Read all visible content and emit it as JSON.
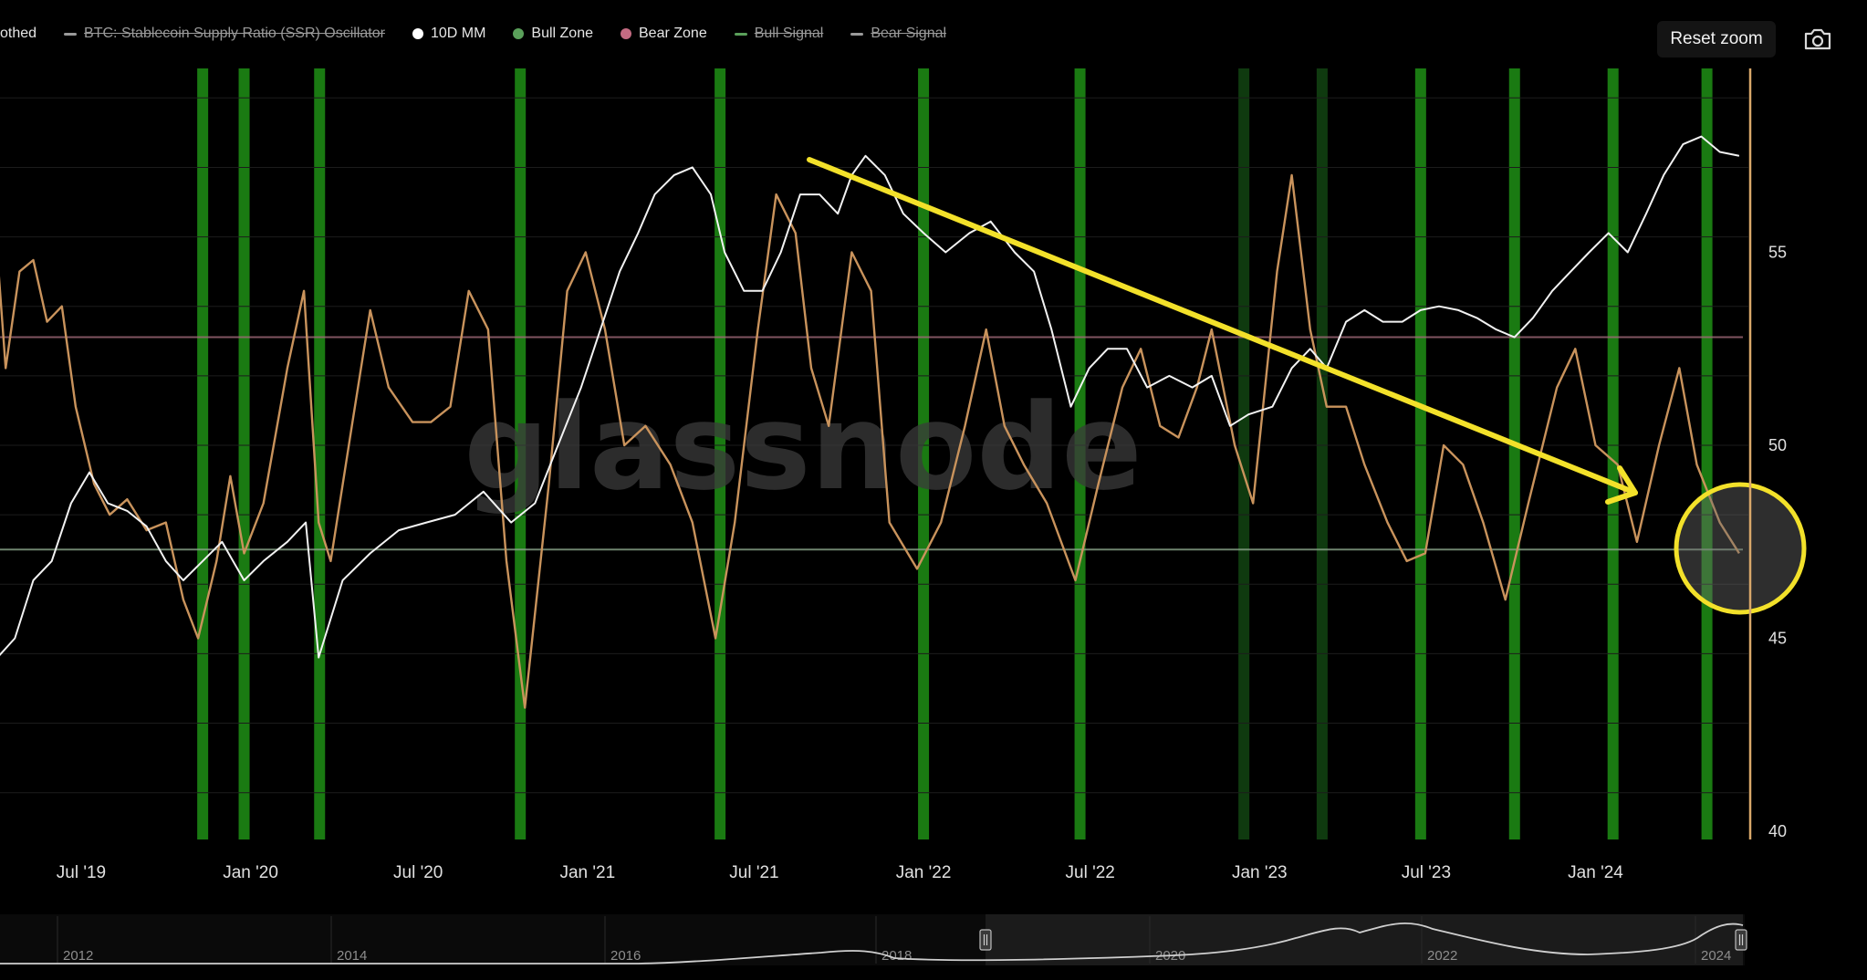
{
  "legend": {
    "items": [
      {
        "label": "othed",
        "color": "#c9935c",
        "active": true,
        "marker": "none"
      },
      {
        "label": "BTC: Stablecoin Supply Ratio (SSR) Oscillator",
        "color": "#9a9a9a",
        "active": false,
        "marker": "line"
      },
      {
        "label": "10D MM",
        "color": "#ffffff",
        "active": true,
        "marker": "dot"
      },
      {
        "label": "Bull Zone",
        "color": "#5aa05a",
        "active": true,
        "marker": "dot"
      },
      {
        "label": "Bear Zone",
        "color": "#c46b82",
        "active": true,
        "marker": "dot"
      },
      {
        "label": "Bull Signal",
        "color": "#5aa05a",
        "active": false,
        "marker": "line"
      },
      {
        "label": "Bear Signal",
        "color": "#9a9a9a",
        "active": false,
        "marker": "line"
      }
    ]
  },
  "toolbar": {
    "reset_zoom_label": "Reset zoom"
  },
  "icons": {
    "camera": "camera-icon"
  },
  "watermark": "glassnode",
  "chart_data": {
    "type": "line",
    "x_range": [
      "2019-03-15",
      "2024-06-15"
    ],
    "x_ticks": [
      {
        "date": "2019-07-01",
        "label": "Jul '19"
      },
      {
        "date": "2020-01-01",
        "label": "Jan '20"
      },
      {
        "date": "2020-07-01",
        "label": "Jul '20"
      },
      {
        "date": "2021-01-01",
        "label": "Jan '21"
      },
      {
        "date": "2021-07-01",
        "label": "Jul '21"
      },
      {
        "date": "2022-01-01",
        "label": "Jan '22"
      },
      {
        "date": "2022-07-01",
        "label": "Jul '22"
      },
      {
        "date": "2023-01-01",
        "label": "Jan '23"
      },
      {
        "date": "2023-07-01",
        "label": "Jul '23"
      },
      {
        "date": "2024-01-01",
        "label": "Jan '24"
      }
    ],
    "y_right": {
      "min": 40,
      "max": 60,
      "ticks": [
        40,
        45,
        50,
        55
      ]
    },
    "bear_zone_level": 52.8,
    "bull_zone_level": 47.3,
    "bull_signal_dates": [
      "2019-11-10",
      "2019-12-25",
      "2020-03-16",
      "2020-10-20",
      "2021-05-25",
      "2022-01-01",
      "2022-06-20",
      "2022-12-15",
      "2023-03-10",
      "2023-06-25",
      "2023-10-05",
      "2024-01-20",
      "2024-05-01"
    ],
    "series": [
      {
        "name": "othed",
        "color": "#c9935c",
        "points": [
          [
            "2019-03-15",
            55.8
          ],
          [
            "2019-03-25",
            57.2
          ],
          [
            "2019-04-10",
            52.0
          ],
          [
            "2019-04-25",
            54.5
          ],
          [
            "2019-05-10",
            54.8
          ],
          [
            "2019-05-25",
            53.2
          ],
          [
            "2019-06-10",
            53.6
          ],
          [
            "2019-06-25",
            51.0
          ],
          [
            "2019-07-15",
            49.0
          ],
          [
            "2019-08-01",
            48.2
          ],
          [
            "2019-08-20",
            48.6
          ],
          [
            "2019-09-10",
            47.8
          ],
          [
            "2019-10-01",
            48.0
          ],
          [
            "2019-10-20",
            46.0
          ],
          [
            "2019-11-05",
            45.0
          ],
          [
            "2019-11-25",
            47.0
          ],
          [
            "2019-12-10",
            49.2
          ],
          [
            "2019-12-25",
            47.2
          ],
          [
            "2020-01-15",
            48.5
          ],
          [
            "2020-02-10",
            52.0
          ],
          [
            "2020-02-28",
            54.0
          ],
          [
            "2020-03-15",
            48.0
          ],
          [
            "2020-03-28",
            47.0
          ],
          [
            "2020-04-20",
            50.5
          ],
          [
            "2020-05-10",
            53.5
          ],
          [
            "2020-05-30",
            51.5
          ],
          [
            "2020-06-25",
            50.6
          ],
          [
            "2020-07-15",
            50.6
          ],
          [
            "2020-08-05",
            51.0
          ],
          [
            "2020-08-25",
            54.0
          ],
          [
            "2020-09-15",
            53.0
          ],
          [
            "2020-10-05",
            47.0
          ],
          [
            "2020-10-25",
            43.2
          ],
          [
            "2020-11-20",
            49.0
          ],
          [
            "2020-12-10",
            54.0
          ],
          [
            "2020-12-30",
            55.0
          ],
          [
            "2021-01-20",
            53.0
          ],
          [
            "2021-02-10",
            50.0
          ],
          [
            "2021-03-05",
            50.5
          ],
          [
            "2021-04-01",
            49.5
          ],
          [
            "2021-04-25",
            48.0
          ],
          [
            "2021-05-20",
            45.0
          ],
          [
            "2021-06-10",
            48.0
          ],
          [
            "2021-07-05",
            53.0
          ],
          [
            "2021-07-25",
            56.5
          ],
          [
            "2021-08-15",
            55.5
          ],
          [
            "2021-09-01",
            52.0
          ],
          [
            "2021-09-20",
            50.5
          ],
          [
            "2021-10-15",
            55.0
          ],
          [
            "2021-11-05",
            54.0
          ],
          [
            "2021-11-25",
            48.0
          ],
          [
            "2021-12-25",
            46.8
          ],
          [
            "2022-01-20",
            48.0
          ],
          [
            "2022-02-15",
            50.5
          ],
          [
            "2022-03-10",
            53.0
          ],
          [
            "2022-03-30",
            50.5
          ],
          [
            "2022-04-20",
            49.5
          ],
          [
            "2022-05-15",
            48.5
          ],
          [
            "2022-06-15",
            46.5
          ],
          [
            "2022-07-10",
            49.0
          ],
          [
            "2022-08-05",
            51.5
          ],
          [
            "2022-08-25",
            52.5
          ],
          [
            "2022-09-15",
            50.5
          ],
          [
            "2022-10-05",
            50.2
          ],
          [
            "2022-10-25",
            51.5
          ],
          [
            "2022-11-10",
            53.0
          ],
          [
            "2022-12-05",
            50.0
          ],
          [
            "2022-12-25",
            48.5
          ],
          [
            "2023-01-20",
            54.5
          ],
          [
            "2023-02-05",
            57.0
          ],
          [
            "2023-02-25",
            53.0
          ],
          [
            "2023-03-15",
            51.0
          ],
          [
            "2023-04-05",
            51.0
          ],
          [
            "2023-04-25",
            49.5
          ],
          [
            "2023-05-20",
            48.0
          ],
          [
            "2023-06-10",
            47.0
          ],
          [
            "2023-06-30",
            47.2
          ],
          [
            "2023-07-20",
            50.0
          ],
          [
            "2023-08-10",
            49.5
          ],
          [
            "2023-09-01",
            48.0
          ],
          [
            "2023-09-25",
            46.0
          ],
          [
            "2023-10-20",
            48.5
          ],
          [
            "2023-11-20",
            51.5
          ],
          [
            "2023-12-10",
            52.5
          ],
          [
            "2024-01-01",
            50.0
          ],
          [
            "2024-01-25",
            49.5
          ],
          [
            "2024-02-15",
            47.5
          ],
          [
            "2024-03-10",
            50.0
          ],
          [
            "2024-04-01",
            52.0
          ],
          [
            "2024-04-20",
            49.5
          ],
          [
            "2024-05-15",
            48.0
          ],
          [
            "2024-06-05",
            47.2
          ]
        ]
      },
      {
        "name": "10D MM",
        "color": "#f2f2f2",
        "points": [
          [
            "2019-03-15",
            43.5
          ],
          [
            "2019-04-01",
            44.5
          ],
          [
            "2019-04-20",
            45.0
          ],
          [
            "2019-05-10",
            46.5
          ],
          [
            "2019-05-30",
            47.0
          ],
          [
            "2019-06-20",
            48.5
          ],
          [
            "2019-07-10",
            49.3
          ],
          [
            "2019-07-30",
            48.5
          ],
          [
            "2019-08-20",
            48.3
          ],
          [
            "2019-09-10",
            47.9
          ],
          [
            "2019-10-01",
            47.0
          ],
          [
            "2019-10-20",
            46.5
          ],
          [
            "2019-11-10",
            47.0
          ],
          [
            "2019-12-01",
            47.5
          ],
          [
            "2019-12-25",
            46.5
          ],
          [
            "2020-01-15",
            47.0
          ],
          [
            "2020-02-10",
            47.5
          ],
          [
            "2020-03-01",
            48.0
          ],
          [
            "2020-03-15",
            44.5
          ],
          [
            "2020-04-10",
            46.5
          ],
          [
            "2020-05-10",
            47.2
          ],
          [
            "2020-06-10",
            47.8
          ],
          [
            "2020-07-10",
            48.0
          ],
          [
            "2020-08-10",
            48.2
          ],
          [
            "2020-09-10",
            48.8
          ],
          [
            "2020-10-10",
            48.0
          ],
          [
            "2020-11-05",
            48.5
          ],
          [
            "2020-11-30",
            50.0
          ],
          [
            "2020-12-25",
            51.5
          ],
          [
            "2021-01-15",
            53.0
          ],
          [
            "2021-02-05",
            54.5
          ],
          [
            "2021-02-25",
            55.5
          ],
          [
            "2021-03-15",
            56.5
          ],
          [
            "2021-04-05",
            57.0
          ],
          [
            "2021-04-25",
            57.2
          ],
          [
            "2021-05-15",
            56.5
          ],
          [
            "2021-05-30",
            55.0
          ],
          [
            "2021-06-20",
            54.0
          ],
          [
            "2021-07-10",
            54.0
          ],
          [
            "2021-07-30",
            55.0
          ],
          [
            "2021-08-20",
            56.5
          ],
          [
            "2021-09-10",
            56.5
          ],
          [
            "2021-09-30",
            56.0
          ],
          [
            "2021-10-15",
            57.0
          ],
          [
            "2021-10-30",
            57.5
          ],
          [
            "2021-11-20",
            57.0
          ],
          [
            "2021-12-10",
            56.0
          ],
          [
            "2022-01-01",
            55.5
          ],
          [
            "2022-01-25",
            55.0
          ],
          [
            "2022-02-20",
            55.5
          ],
          [
            "2022-03-15",
            55.8
          ],
          [
            "2022-04-10",
            55.0
          ],
          [
            "2022-05-01",
            54.5
          ],
          [
            "2022-05-20",
            53.0
          ],
          [
            "2022-06-10",
            51.0
          ],
          [
            "2022-06-30",
            52.0
          ],
          [
            "2022-07-20",
            52.5
          ],
          [
            "2022-08-10",
            52.5
          ],
          [
            "2022-09-01",
            51.5
          ],
          [
            "2022-09-25",
            51.8
          ],
          [
            "2022-10-20",
            51.5
          ],
          [
            "2022-11-10",
            51.8
          ],
          [
            "2022-11-30",
            50.5
          ],
          [
            "2022-12-20",
            50.8
          ],
          [
            "2023-01-15",
            51.0
          ],
          [
            "2023-02-05",
            52.0
          ],
          [
            "2023-02-25",
            52.5
          ],
          [
            "2023-03-15",
            52.0
          ],
          [
            "2023-04-05",
            53.2
          ],
          [
            "2023-04-25",
            53.5
          ],
          [
            "2023-05-15",
            53.2
          ],
          [
            "2023-06-05",
            53.2
          ],
          [
            "2023-06-25",
            53.5
          ],
          [
            "2023-07-15",
            53.6
          ],
          [
            "2023-08-05",
            53.5
          ],
          [
            "2023-08-25",
            53.3
          ],
          [
            "2023-09-15",
            53.0
          ],
          [
            "2023-10-05",
            52.8
          ],
          [
            "2023-10-25",
            53.3
          ],
          [
            "2023-11-15",
            54.0
          ],
          [
            "2023-12-05",
            54.5
          ],
          [
            "2023-12-25",
            55.0
          ],
          [
            "2024-01-15",
            55.5
          ],
          [
            "2024-02-05",
            55.0
          ],
          [
            "2024-02-25",
            56.0
          ],
          [
            "2024-03-15",
            57.0
          ],
          [
            "2024-04-05",
            57.8
          ],
          [
            "2024-04-25",
            58.0
          ],
          [
            "2024-05-15",
            57.6
          ],
          [
            "2024-06-05",
            57.5
          ]
        ]
      }
    ],
    "overview": {
      "year_labels": [
        "2012",
        "2014",
        "2016",
        "2018",
        "2020",
        "2022",
        "2024"
      ]
    }
  }
}
